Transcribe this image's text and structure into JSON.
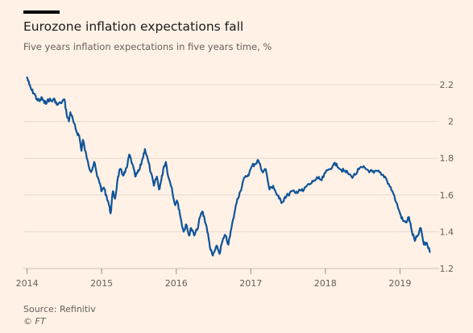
{
  "header": {
    "title": "Eurozone inflation expectations fall",
    "subtitle": "Five years inflation expectations in five years time, %"
  },
  "footer": {
    "source": "Source: Refinitiv",
    "copyright": "© FT"
  },
  "chart_data": {
    "type": "line",
    "title": "Eurozone inflation expectations fall",
    "subtitle": "Five years inflation expectations in five years time, %",
    "xlabel": "",
    "ylabel": "",
    "xlim": [
      2013.95,
      2019.45
    ],
    "ylim": [
      1.2,
      2.25
    ],
    "x_ticks": [
      2014,
      2015,
      2016,
      2017,
      2018,
      2019
    ],
    "x_tick_labels": [
      "2014",
      "2015",
      "2016",
      "2017",
      "2018",
      "2019"
    ],
    "y_ticks": [
      1.2,
      1.4,
      1.6,
      1.8,
      2.0,
      2.2
    ],
    "y_tick_labels": [
      "1.2",
      "1.4",
      "1.6",
      "1.8",
      "2",
      "2.2"
    ],
    "grid": "horizontal",
    "line_color": "#0f5499",
    "series": [
      {
        "name": "",
        "x": [
          2014.0,
          2014.03,
          2014.06,
          2014.1,
          2014.13,
          2014.17,
          2014.2,
          2014.23,
          2014.27,
          2014.3,
          2014.33,
          2014.37,
          2014.4,
          2014.45,
          2014.5,
          2014.53,
          2014.56,
          2014.58,
          2014.62,
          2014.65,
          2014.67,
          2014.7,
          2014.73,
          2014.75,
          2014.8,
          2014.85,
          2014.88,
          2014.9,
          2014.94,
          2014.98,
          2015.0,
          2015.03,
          2015.06,
          2015.09,
          2015.12,
          2015.15,
          2015.18,
          2015.22,
          2015.25,
          2015.28,
          2015.31,
          2015.34,
          2015.37,
          2015.41,
          2015.45,
          2015.48,
          2015.51,
          2015.55,
          2015.58,
          2015.62,
          2015.66,
          2015.7,
          2015.74,
          2015.77,
          2015.8,
          2015.83,
          2015.86,
          2015.9,
          2015.94,
          2015.98,
          2016.01,
          2016.04,
          2016.07,
          2016.1,
          2016.13,
          2016.17,
          2016.2,
          2016.24,
          2016.28,
          2016.32,
          2016.35,
          2016.38,
          2016.41,
          2016.44,
          2016.46,
          2016.49,
          2016.52,
          2016.55,
          2016.58,
          2016.62,
          2016.66,
          2016.7,
          2016.74,
          2016.78,
          2016.82,
          2016.86,
          2016.9,
          2016.94,
          2016.98,
          2017.02,
          2017.06,
          2017.1,
          2017.15,
          2017.2,
          2017.25,
          2017.3,
          2017.34,
          2017.38,
          2017.42,
          2017.46,
          2017.5,
          2017.55,
          2017.6,
          2017.65,
          2017.7,
          2017.75,
          2017.8,
          2017.85,
          2017.9,
          2017.95,
          2018.0,
          2018.05,
          2018.1,
          2018.15,
          2018.2,
          2018.25,
          2018.3,
          2018.35,
          2018.4,
          2018.45,
          2018.5,
          2018.55,
          2018.6,
          2018.65,
          2018.7,
          2018.75,
          2018.8,
          2018.85,
          2018.9,
          2018.95,
          2019.0,
          2019.04,
          2019.08,
          2019.12,
          2019.16,
          2019.2,
          2019.24,
          2019.28,
          2019.32,
          2019.36,
          2019.4
        ],
        "values": [
          2.24,
          2.2,
          2.17,
          2.15,
          2.12,
          2.11,
          2.13,
          2.1,
          2.11,
          2.12,
          2.11,
          2.12,
          2.09,
          2.1,
          2.12,
          2.04,
          2.0,
          2.05,
          2.0,
          1.96,
          1.94,
          1.92,
          1.84,
          1.9,
          1.8,
          1.73,
          1.75,
          1.78,
          1.7,
          1.66,
          1.62,
          1.64,
          1.6,
          1.56,
          1.5,
          1.62,
          1.58,
          1.7,
          1.74,
          1.71,
          1.72,
          1.75,
          1.82,
          1.77,
          1.7,
          1.72,
          1.74,
          1.8,
          1.85,
          1.79,
          1.72,
          1.65,
          1.7,
          1.63,
          1.68,
          1.75,
          1.78,
          1.69,
          1.64,
          1.55,
          1.57,
          1.52,
          1.45,
          1.4,
          1.44,
          1.38,
          1.42,
          1.38,
          1.41,
          1.48,
          1.51,
          1.47,
          1.42,
          1.35,
          1.3,
          1.27,
          1.3,
          1.32,
          1.28,
          1.35,
          1.38,
          1.33,
          1.42,
          1.5,
          1.58,
          1.62,
          1.68,
          1.7,
          1.72,
          1.76,
          1.77,
          1.79,
          1.73,
          1.74,
          1.63,
          1.65,
          1.61,
          1.58,
          1.56,
          1.59,
          1.6,
          1.62,
          1.61,
          1.63,
          1.62,
          1.65,
          1.66,
          1.68,
          1.69,
          1.68,
          1.72,
          1.74,
          1.76,
          1.77,
          1.74,
          1.73,
          1.72,
          1.7,
          1.71,
          1.74,
          1.75,
          1.74,
          1.73,
          1.72,
          1.73,
          1.71,
          1.7,
          1.66,
          1.62,
          1.56,
          1.5,
          1.46,
          1.45,
          1.48,
          1.4,
          1.35,
          1.38,
          1.42,
          1.33,
          1.34,
          1.29
        ]
      }
    ]
  }
}
